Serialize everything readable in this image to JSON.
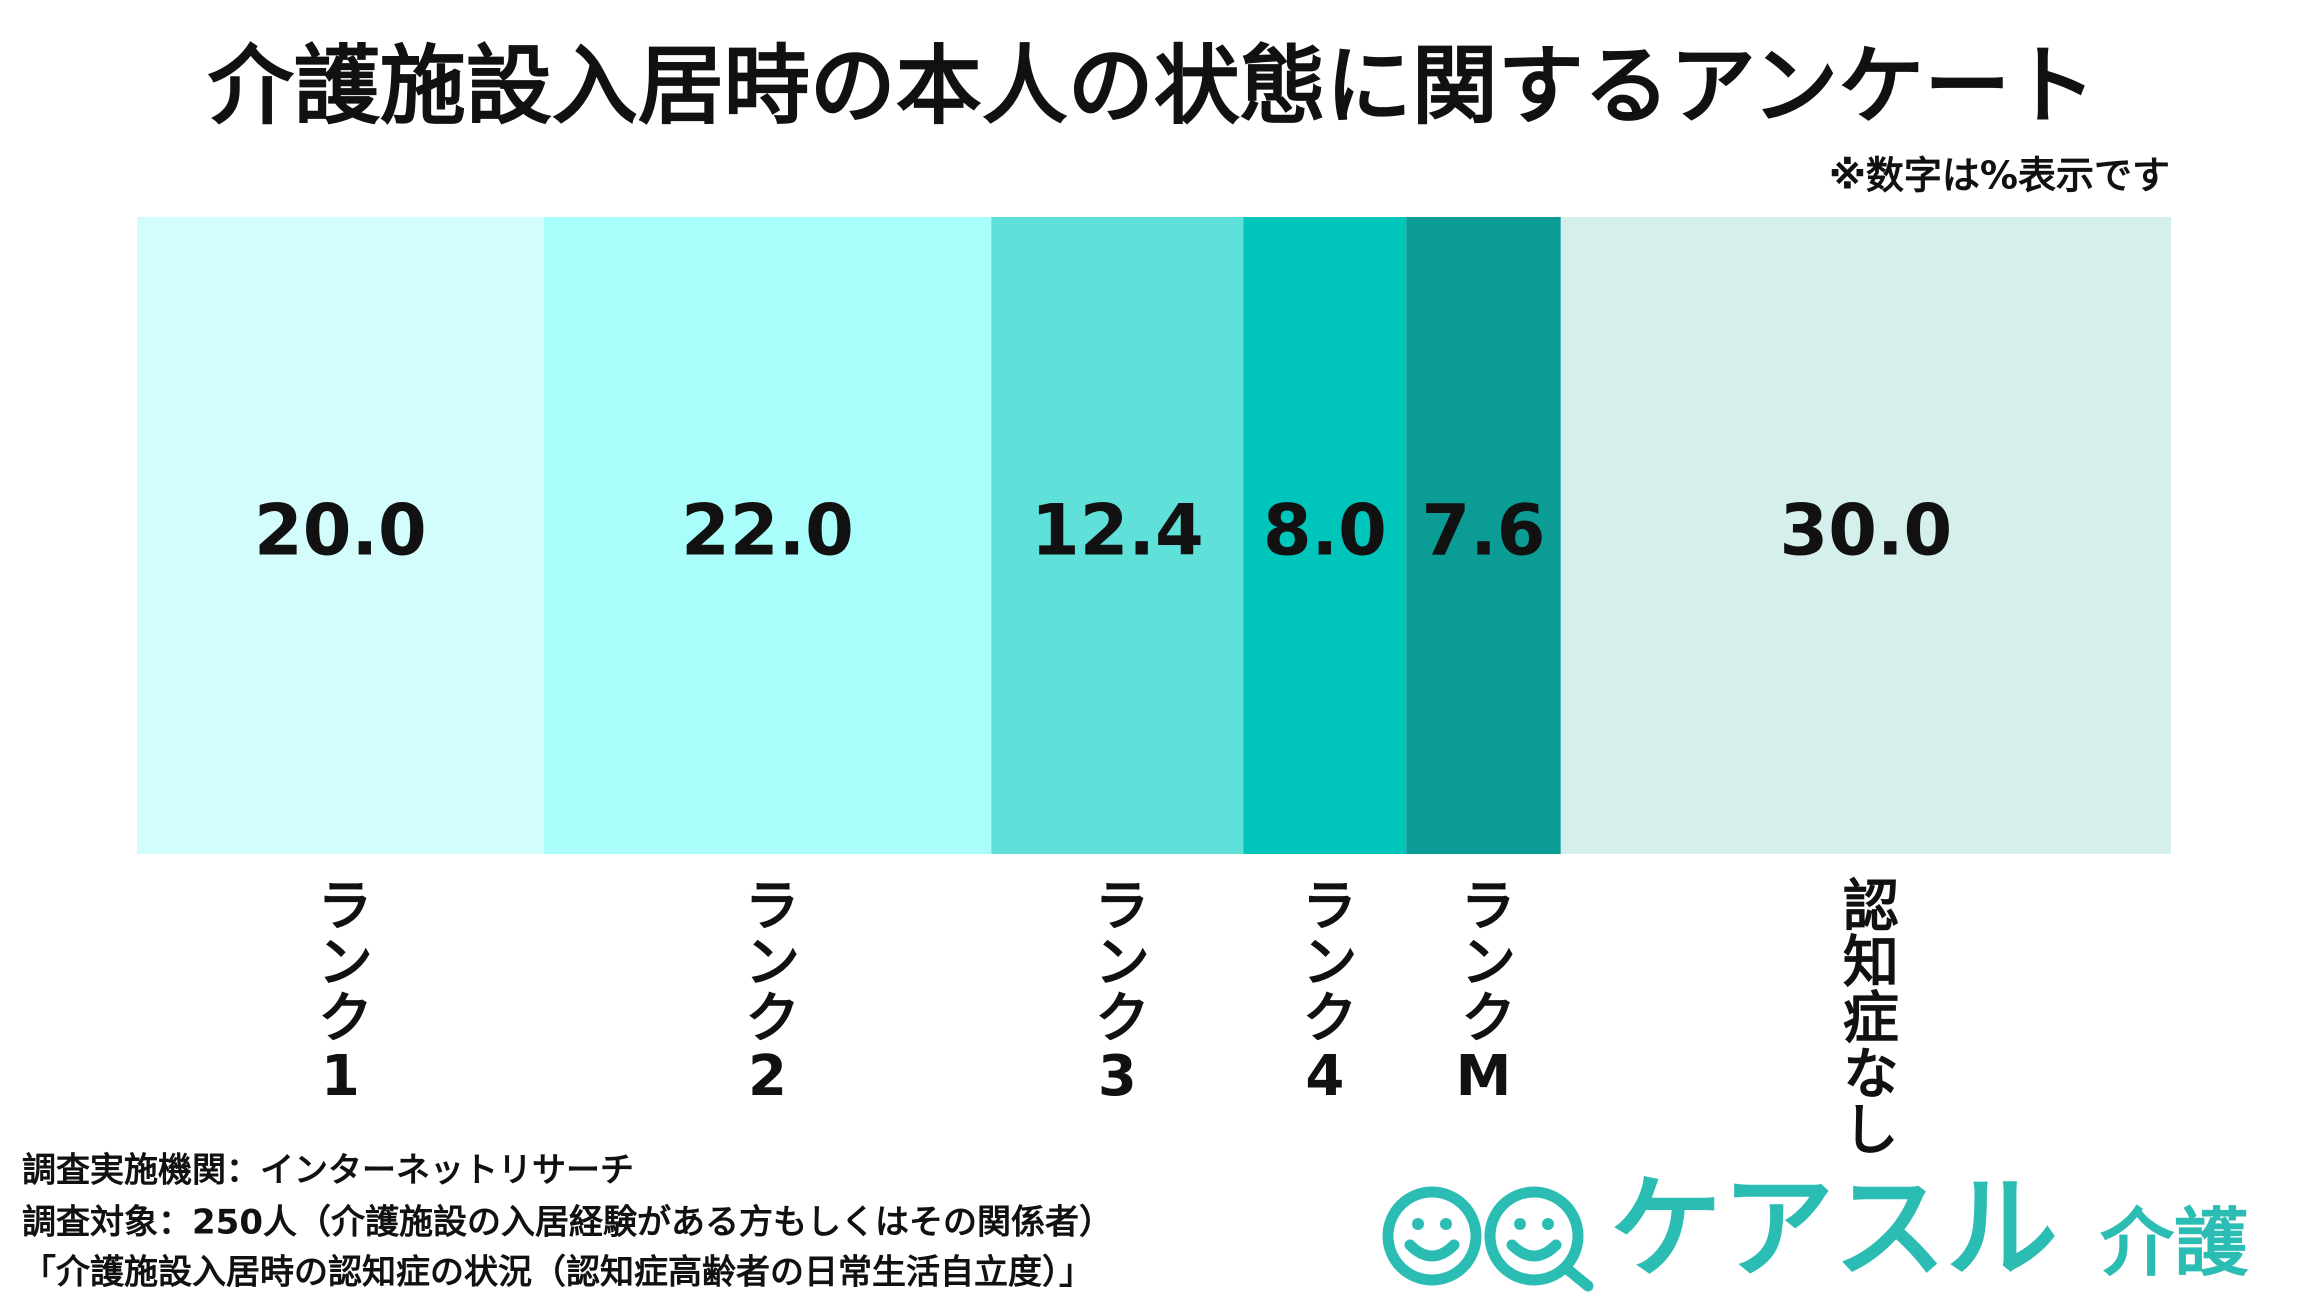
{
  "chart_data": {
    "type": "stacked_bar",
    "title": "介護施設入居時の本人の状態に関するアンケート",
    "note": "※数字は%表示です",
    "categories": [
      "ランク1",
      "ランク2",
      "ランク3",
      "ランク4",
      "ランクM",
      "認知症なし"
    ],
    "values": [
      20,
      22,
      12.4,
      8,
      7.6,
      30
    ],
    "value_labels": [
      "20.0",
      "22.0",
      "12.4",
      "8.0",
      "7.6",
      "30.0"
    ],
    "colors": [
      "#d3fdfc",
      "#a9fdfa",
      "#5fe1da",
      "#00c5bb",
      "#0a9c95",
      "#d5efed"
    ]
  },
  "footer": {
    "source": [
      "調査実施機関：インターネットリサーチ",
      "調査対象：250人（介護施設の入居経験がある方もしくはその関係者）",
      "「介護施設入居時の認知症の状況（認知症高齢者の日常生活自立度）」"
    ]
  },
  "logo": {
    "name": "ケアスル",
    "sub": "介護"
  }
}
